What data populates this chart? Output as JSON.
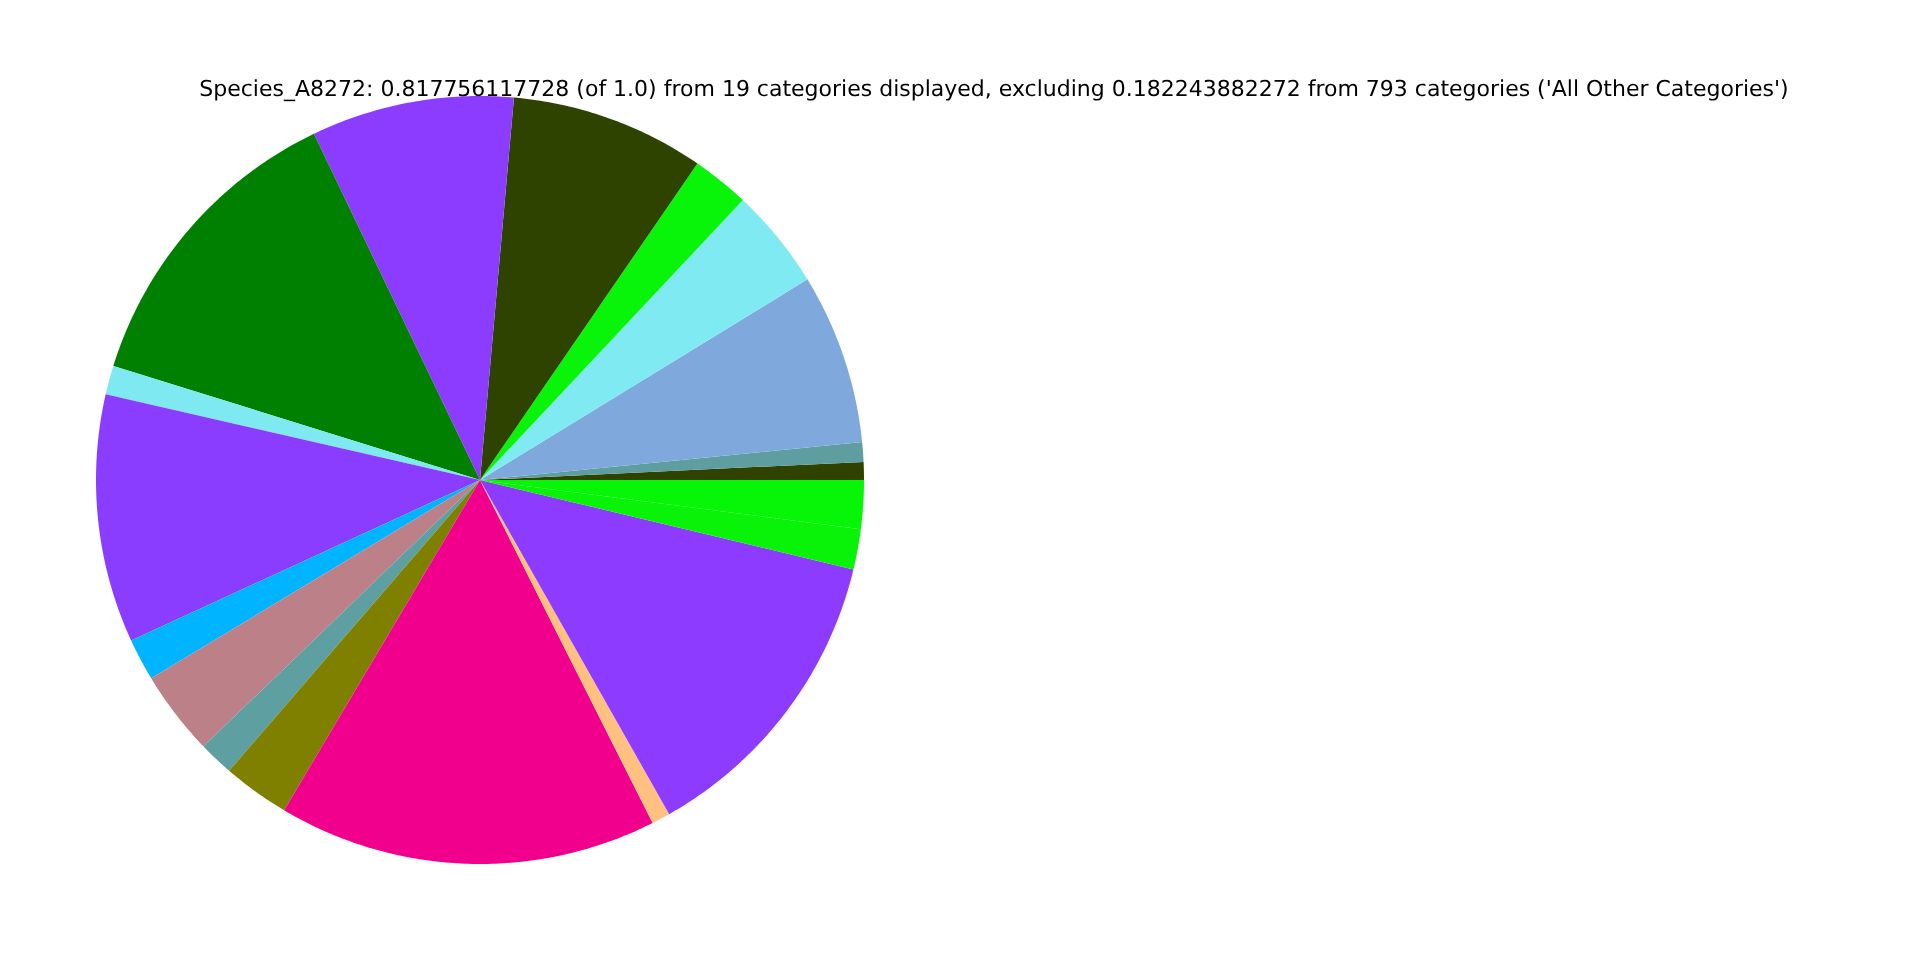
{
  "chart_data": {
    "type": "pie",
    "title": "Species_A8272: 0.817756117728 (of 1.0) from 19 categories displayed, excluding 0.182243882272 from 793 categories ('All Other Categories')",
    "categories": [
      null,
      null,
      null,
      null,
      null,
      null,
      null,
      null,
      null,
      null,
      null,
      null,
      null,
      null,
      null,
      null,
      null,
      null,
      null
    ],
    "values": [
      0.75,
      0.83,
      7.17,
      4.25,
      2.42,
      8.17,
      8.53,
      13.08,
      1.22,
      10.44,
      1.78,
      3.56,
      1.47,
      2.81,
      15.94,
      0.78,
      13.06,
      1.69,
      2.05
    ],
    "colors": [
      "#2f4200",
      "#5f9ea0",
      "#7fa9dc",
      "#80eaf2",
      "#08f408",
      "#2e4300",
      "#8c3cff",
      "#008000",
      "#7fe9f1",
      "#8b3dff",
      "#00b4ff",
      "#bc8088",
      "#5e9fa1",
      "#808000",
      "#f0008c",
      "#ffc080",
      "#8d3bfe",
      "#09f309",
      "#07f507"
    ]
  }
}
